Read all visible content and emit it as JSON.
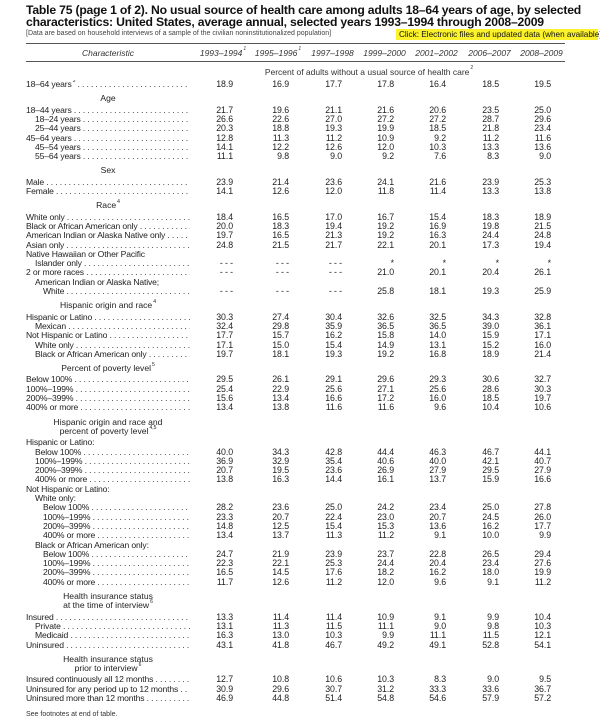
{
  "title_lines": [
    "Table 75 (page 1 of 2). No usual source of health care among adults 18–64 years of age, by selected",
    "characteristics: United States, average annual, selected years 1993–1994 through 2008–2009"
  ],
  "note": "[Data are based on household interviews of a sample of the civilian noninstitutionalized population]",
  "link_label": "Click: Electronic files and updated data (when available)",
  "highlight_color": "#fbf22c",
  "header": {
    "characteristic": "Characteristic",
    "columns": [
      {
        "label": "1993–1994",
        "sup": "1"
      },
      {
        "label": "1995–1996",
        "sup": "1"
      },
      {
        "label": "1997–1998",
        "sup": ""
      },
      {
        "label": "1999–2000",
        "sup": ""
      },
      {
        "label": "2001–2002",
        "sup": ""
      },
      {
        "label": "2006–2007",
        "sup": ""
      },
      {
        "label": "2008–2009",
        "sup": ""
      }
    ]
  },
  "unit_label": {
    "text": "Percent of adults without a usual source of health care",
    "sup": "2"
  },
  "rows": [
    {
      "kind": "data",
      "label": "18–64 years",
      "sup": "3",
      "indent": 0,
      "values": [
        "18.9",
        "16.9",
        "17.7",
        "17.8",
        "16.4",
        "18.5",
        "19.5"
      ]
    },
    {
      "kind": "heading",
      "lines": [
        "Age"
      ],
      "sup": ""
    },
    {
      "kind": "data",
      "label": "18–44 years",
      "indent": 0,
      "values": [
        "21.7",
        "19.6",
        "21.1",
        "21.6",
        "20.6",
        "23.5",
        "25.0"
      ]
    },
    {
      "kind": "data",
      "label": "18–24 years",
      "indent": 1,
      "values": [
        "26.6",
        "22.6",
        "27.0",
        "27.2",
        "27.2",
        "28.7",
        "29.6"
      ]
    },
    {
      "kind": "data",
      "label": "25–44 years",
      "indent": 1,
      "values": [
        "20.3",
        "18.8",
        "19.3",
        "19.9",
        "18.5",
        "21.8",
        "23.4"
      ]
    },
    {
      "kind": "data",
      "label": "45–64 years",
      "indent": 0,
      "values": [
        "12.8",
        "11.3",
        "11.2",
        "10.9",
        "9.2",
        "11.2",
        "11.6"
      ]
    },
    {
      "kind": "data",
      "label": "45–54 years",
      "indent": 1,
      "values": [
        "14.1",
        "12.2",
        "12.6",
        "12.0",
        "10.3",
        "13.3",
        "13.6"
      ]
    },
    {
      "kind": "data",
      "label": "55–64 years",
      "indent": 1,
      "values": [
        "11.1",
        "9.8",
        "9.0",
        "9.2",
        "7.6",
        "8.3",
        "9.0"
      ]
    },
    {
      "kind": "heading",
      "lines": [
        "Sex"
      ],
      "sup": ""
    },
    {
      "kind": "data",
      "label": "Male",
      "indent": 0,
      "values": [
        "23.9",
        "21.4",
        "23.6",
        "24.1",
        "21.6",
        "23.9",
        "25.3"
      ]
    },
    {
      "kind": "data",
      "label": "Female",
      "indent": 0,
      "values": [
        "14.1",
        "12.6",
        "12.0",
        "11.8",
        "11.4",
        "13.3",
        "13.8"
      ]
    },
    {
      "kind": "heading",
      "lines": [
        "Race"
      ],
      "sup": "4"
    },
    {
      "kind": "data",
      "label": "White only",
      "indent": 0,
      "values": [
        "18.4",
        "16.5",
        "17.0",
        "16.7",
        "15.4",
        "18.3",
        "18.9"
      ]
    },
    {
      "kind": "data",
      "label": "Black or African American only",
      "indent": 0,
      "values": [
        "20.0",
        "18.3",
        "19.4",
        "19.2",
        "16.9",
        "19.8",
        "21.5"
      ]
    },
    {
      "kind": "data",
      "label": "American Indian or Alaska Native only",
      "indent": 0,
      "values": [
        "19.7",
        "16.5",
        "21.3",
        "19.2",
        "16.3",
        "24.4",
        "24.8"
      ]
    },
    {
      "kind": "data",
      "label": "Asian only",
      "indent": 0,
      "values": [
        "24.8",
        "21.5",
        "21.7",
        "22.1",
        "20.1",
        "17.3",
        "19.4"
      ]
    },
    {
      "kind": "label",
      "label": "Native Hawaiian or Other Pacific",
      "indent": 0
    },
    {
      "kind": "data",
      "label": "Islander only",
      "indent": 1,
      "values": [
        "- - -",
        "- - -",
        "- - -",
        "*",
        "*",
        "*",
        "*"
      ]
    },
    {
      "kind": "data",
      "label": "2 or more races",
      "indent": 0,
      "values": [
        "- - -",
        "- - -",
        "- - -",
        "21.0",
        "20.1",
        "20.4",
        "26.1"
      ]
    },
    {
      "kind": "label",
      "label": "American Indian or Alaska Native;",
      "indent": 1
    },
    {
      "kind": "data",
      "label": "White",
      "indent": 2,
      "values": [
        "- - -",
        "- - -",
        "- - -",
        "25.8",
        "18.1",
        "19.3",
        "25.9"
      ]
    },
    {
      "kind": "heading",
      "lines": [
        "Hispanic origin and race"
      ],
      "sup": "4"
    },
    {
      "kind": "data",
      "label": "Hispanic or Latino",
      "indent": 0,
      "values": [
        "30.3",
        "27.4",
        "30.4",
        "32.6",
        "32.5",
        "34.3",
        "32.8"
      ]
    },
    {
      "kind": "data",
      "label": "Mexican",
      "indent": 1,
      "values": [
        "32.4",
        "29.8",
        "35.9",
        "36.5",
        "36.5",
        "39.0",
        "36.1"
      ]
    },
    {
      "kind": "data",
      "label": "Not Hispanic or Latino",
      "indent": 0,
      "values": [
        "17.7",
        "15.7",
        "16.2",
        "15.8",
        "14.0",
        "15.9",
        "17.1"
      ]
    },
    {
      "kind": "data",
      "label": "White only",
      "indent": 1,
      "values": [
        "17.1",
        "15.0",
        "15.4",
        "14.9",
        "13.1",
        "15.2",
        "16.0"
      ]
    },
    {
      "kind": "data",
      "label": "Black or African American only",
      "indent": 1,
      "values": [
        "19.7",
        "18.1",
        "19.3",
        "19.2",
        "16.8",
        "18.9",
        "21.4"
      ]
    },
    {
      "kind": "heading",
      "lines": [
        "Percent of poverty level"
      ],
      "sup": "5"
    },
    {
      "kind": "data",
      "label": "Below 100%",
      "indent": 0,
      "values": [
        "29.5",
        "26.1",
        "29.1",
        "29.6",
        "29.3",
        "30.6",
        "32.7"
      ]
    },
    {
      "kind": "data",
      "label": "100%–199%",
      "indent": 0,
      "values": [
        "25.4",
        "22.9",
        "25.6",
        "27.1",
        "25.6",
        "28.6",
        "30.3"
      ]
    },
    {
      "kind": "data",
      "label": "200%–399%",
      "indent": 0,
      "values": [
        "15.6",
        "13.4",
        "16.6",
        "17.2",
        "16.0",
        "18.5",
        "19.7"
      ]
    },
    {
      "kind": "data",
      "label": "400% or more",
      "indent": 0,
      "values": [
        "13.4",
        "13.8",
        "11.6",
        "11.6",
        "9.6",
        "10.4",
        "10.6"
      ]
    },
    {
      "kind": "heading",
      "lines": [
        "Hispanic origin and race and",
        "percent of poverty level"
      ],
      "sup": "4,5"
    },
    {
      "kind": "label",
      "label": "Hispanic or Latino:",
      "indent": 0
    },
    {
      "kind": "data",
      "label": "Below 100%",
      "indent": 1,
      "values": [
        "40.0",
        "34.3",
        "42.8",
        "44.4",
        "46.3",
        "46.7",
        "44.1"
      ]
    },
    {
      "kind": "data",
      "label": "100%–199%",
      "indent": 1,
      "values": [
        "36.9",
        "32.9",
        "35.4",
        "40.6",
        "40.0",
        "42.1",
        "40.7"
      ]
    },
    {
      "kind": "data",
      "label": "200%–399%",
      "indent": 1,
      "values": [
        "20.7",
        "19.5",
        "23.6",
        "26.9",
        "27.9",
        "29.5",
        "27.9"
      ]
    },
    {
      "kind": "data",
      "label": "400% or more",
      "indent": 1,
      "values": [
        "13.8",
        "16.3",
        "14.4",
        "16.1",
        "13.7",
        "15.9",
        "16.6"
      ]
    },
    {
      "kind": "label",
      "label": "Not Hispanic or Latino:",
      "indent": 0
    },
    {
      "kind": "label",
      "label": "White only:",
      "indent": 1
    },
    {
      "kind": "data",
      "label": "Below 100%",
      "indent": 2,
      "values": [
        "28.2",
        "23.6",
        "25.0",
        "24.2",
        "23.4",
        "25.0",
        "27.8"
      ]
    },
    {
      "kind": "data",
      "label": "100%–199%",
      "indent": 2,
      "values": [
        "23.3",
        "20.7",
        "22.4",
        "23.0",
        "20.7",
        "24.5",
        "26.0"
      ]
    },
    {
      "kind": "data",
      "label": "200%–399%",
      "indent": 2,
      "values": [
        "14.8",
        "12.5",
        "15.4",
        "15.3",
        "13.6",
        "16.2",
        "17.7"
      ]
    },
    {
      "kind": "data",
      "label": "400% or more",
      "indent": 2,
      "values": [
        "13.4",
        "13.7",
        "11.3",
        "11.2",
        "9.1",
        "10.0",
        "9.9"
      ]
    },
    {
      "kind": "label",
      "label": "Black or African American only:",
      "indent": 1
    },
    {
      "kind": "data",
      "label": "Below 100%",
      "indent": 2,
      "values": [
        "24.7",
        "21.9",
        "23.9",
        "23.7",
        "22.8",
        "26.5",
        "29.4"
      ]
    },
    {
      "kind": "data",
      "label": "100%–199%",
      "indent": 2,
      "values": [
        "22.3",
        "22.1",
        "25.3",
        "24.4",
        "20.4",
        "23.4",
        "27.6"
      ]
    },
    {
      "kind": "data",
      "label": "200%–399%",
      "indent": 2,
      "values": [
        "16.5",
        "14.5",
        "17.6",
        "18.2",
        "16.2",
        "18.0",
        "19.9"
      ]
    },
    {
      "kind": "data",
      "label": "400% or more",
      "indent": 2,
      "values": [
        "11.7",
        "12.6",
        "11.2",
        "12.0",
        "9.6",
        "9.1",
        "11.2"
      ]
    },
    {
      "kind": "heading",
      "lines": [
        "Health insurance status",
        "at the time of interview"
      ],
      "sup": "6"
    },
    {
      "kind": "data",
      "label": "Insured",
      "indent": 0,
      "values": [
        "13.3",
        "11.4",
        "11.4",
        "10.9",
        "9.1",
        "9.9",
        "10.4"
      ]
    },
    {
      "kind": "data",
      "label": "Private",
      "indent": 1,
      "values": [
        "13.1",
        "11.3",
        "11.5",
        "11.1",
        "9.0",
        "9.8",
        "10.3"
      ]
    },
    {
      "kind": "data",
      "label": "Medicaid",
      "indent": 1,
      "values": [
        "16.3",
        "13.0",
        "10.3",
        "9.9",
        "11.1",
        "11.5",
        "12.1"
      ]
    },
    {
      "kind": "data",
      "label": "Uninsured",
      "indent": 0,
      "values": [
        "43.1",
        "41.8",
        "46.7",
        "49.2",
        "49.1",
        "52.8",
        "54.1"
      ]
    },
    {
      "kind": "heading",
      "lines": [
        "Health insurance status",
        "prior to interview"
      ],
      "sup": "6"
    },
    {
      "kind": "data",
      "label": "Insured continuously all 12 months",
      "indent": 0,
      "values": [
        "12.7",
        "10.8",
        "10.6",
        "10.3",
        "8.3",
        "9.0",
        "9.5"
      ]
    },
    {
      "kind": "data",
      "label": "Uninsured for any period up to 12 months",
      "indent": 0,
      "values": [
        "30.9",
        "29.6",
        "30.7",
        "31.2",
        "33.3",
        "33.6",
        "36.7"
      ]
    },
    {
      "kind": "data",
      "label": "Uninsured more than 12 months",
      "indent": 0,
      "values": [
        "46.9",
        "44.8",
        "51.4",
        "54.8",
        "54.6",
        "57.9",
        "57.2"
      ]
    }
  ],
  "footnote": "See footnotes at end of table."
}
